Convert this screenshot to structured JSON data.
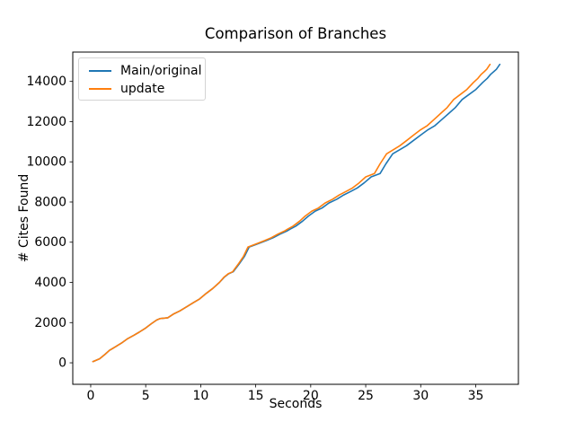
{
  "figure": {
    "background": "#ffffff",
    "frame_color": "#000000"
  },
  "chart_data": {
    "type": "line",
    "title": "Comparison of Branches",
    "xlabel": "Seconds",
    "ylabel": "# Cites Found",
    "grid": false,
    "legend_position": "upper-left",
    "xlim": [
      -1.63,
      38.88
    ],
    "ylim": [
      -1070,
      15460
    ],
    "x_ticks": [
      0,
      5,
      10,
      15,
      20,
      25,
      30,
      35
    ],
    "y_ticks": [
      0,
      2000,
      4000,
      6000,
      8000,
      10000,
      12000,
      14000
    ],
    "series": [
      {
        "name": "Main/original",
        "color": "#1f77b4",
        "points": [
          [
            0.2,
            60
          ],
          [
            0.8,
            200
          ],
          [
            1.3,
            420
          ],
          [
            1.7,
            620
          ],
          [
            2.2,
            780
          ],
          [
            2.8,
            980
          ],
          [
            3.3,
            1180
          ],
          [
            3.9,
            1360
          ],
          [
            4.4,
            1520
          ],
          [
            5.0,
            1730
          ],
          [
            5.5,
            1940
          ],
          [
            6.0,
            2130
          ],
          [
            6.3,
            2200
          ],
          [
            7.0,
            2240
          ],
          [
            7.5,
            2420
          ],
          [
            8.1,
            2580
          ],
          [
            8.7,
            2780
          ],
          [
            9.3,
            2980
          ],
          [
            9.9,
            3180
          ],
          [
            10.5,
            3450
          ],
          [
            11.1,
            3700
          ],
          [
            11.71,
            4000
          ],
          [
            12.12,
            4250
          ],
          [
            12.54,
            4430
          ],
          [
            12.95,
            4530
          ],
          [
            13.47,
            4900
          ],
          [
            13.99,
            5300
          ],
          [
            14.4,
            5760
          ],
          [
            14.82,
            5840
          ],
          [
            15.33,
            5950
          ],
          [
            15.95,
            6080
          ],
          [
            16.58,
            6220
          ],
          [
            17.2,
            6400
          ],
          [
            17.82,
            6550
          ],
          [
            18.13,
            6650
          ],
          [
            18.65,
            6800
          ],
          [
            19.27,
            7050
          ],
          [
            19.79,
            7300
          ],
          [
            20.41,
            7550
          ],
          [
            21.03,
            7700
          ],
          [
            21.65,
            7950
          ],
          [
            22.38,
            8140
          ],
          [
            23.0,
            8350
          ],
          [
            23.62,
            8520
          ],
          [
            24.24,
            8700
          ],
          [
            24.86,
            8950
          ],
          [
            25.49,
            9250
          ],
          [
            26.31,
            9420
          ],
          [
            26.83,
            9900
          ],
          [
            27.45,
            10400
          ],
          [
            28.08,
            10600
          ],
          [
            28.7,
            10800
          ],
          [
            29.32,
            11050
          ],
          [
            30.04,
            11350
          ],
          [
            30.67,
            11600
          ],
          [
            31.29,
            11800
          ],
          [
            31.91,
            12100
          ],
          [
            32.53,
            12400
          ],
          [
            33.15,
            12700
          ],
          [
            33.77,
            13100
          ],
          [
            34.4,
            13350
          ],
          [
            35.02,
            13600
          ],
          [
            35.64,
            13950
          ],
          [
            36.05,
            14150
          ],
          [
            36.36,
            14350
          ],
          [
            36.67,
            14500
          ],
          [
            36.88,
            14600
          ],
          [
            37.19,
            14850
          ]
        ]
      },
      {
        "name": "update",
        "color": "#ff7f0e",
        "points": [
          [
            0.2,
            60
          ],
          [
            0.8,
            200
          ],
          [
            1.3,
            420
          ],
          [
            1.7,
            620
          ],
          [
            2.2,
            780
          ],
          [
            2.8,
            980
          ],
          [
            3.3,
            1180
          ],
          [
            3.9,
            1360
          ],
          [
            4.4,
            1520
          ],
          [
            5.0,
            1730
          ],
          [
            5.5,
            1940
          ],
          [
            6.0,
            2130
          ],
          [
            6.3,
            2200
          ],
          [
            7.0,
            2240
          ],
          [
            7.5,
            2420
          ],
          [
            8.1,
            2580
          ],
          [
            8.7,
            2780
          ],
          [
            9.3,
            2980
          ],
          [
            9.9,
            3180
          ],
          [
            10.5,
            3450
          ],
          [
            11.1,
            3700
          ],
          [
            11.7,
            4000
          ],
          [
            12.1,
            4250
          ],
          [
            12.5,
            4430
          ],
          [
            12.9,
            4530
          ],
          [
            13.4,
            4900
          ],
          [
            13.9,
            5300
          ],
          [
            14.3,
            5760
          ],
          [
            14.7,
            5840
          ],
          [
            15.2,
            5950
          ],
          [
            15.8,
            6080
          ],
          [
            16.4,
            6220
          ],
          [
            17.0,
            6400
          ],
          [
            17.6,
            6550
          ],
          [
            17.9,
            6650
          ],
          [
            18.4,
            6800
          ],
          [
            19.0,
            7050
          ],
          [
            19.5,
            7300
          ],
          [
            20.1,
            7550
          ],
          [
            20.7,
            7700
          ],
          [
            21.3,
            7950
          ],
          [
            22.0,
            8140
          ],
          [
            22.6,
            8350
          ],
          [
            23.2,
            8520
          ],
          [
            23.8,
            8700
          ],
          [
            24.4,
            8950
          ],
          [
            25.0,
            9250
          ],
          [
            25.8,
            9420
          ],
          [
            26.3,
            9900
          ],
          [
            26.9,
            10400
          ],
          [
            27.5,
            10600
          ],
          [
            28.1,
            10800
          ],
          [
            28.7,
            11050
          ],
          [
            29.4,
            11350
          ],
          [
            30.0,
            11600
          ],
          [
            30.6,
            11800
          ],
          [
            31.2,
            12100
          ],
          [
            31.8,
            12400
          ],
          [
            32.4,
            12700
          ],
          [
            33.0,
            13100
          ],
          [
            33.6,
            13350
          ],
          [
            34.2,
            13600
          ],
          [
            34.8,
            13950
          ],
          [
            35.2,
            14150
          ],
          [
            35.5,
            14350
          ],
          [
            35.8,
            14500
          ],
          [
            36.0,
            14600
          ],
          [
            36.3,
            14850
          ]
        ]
      }
    ]
  }
}
